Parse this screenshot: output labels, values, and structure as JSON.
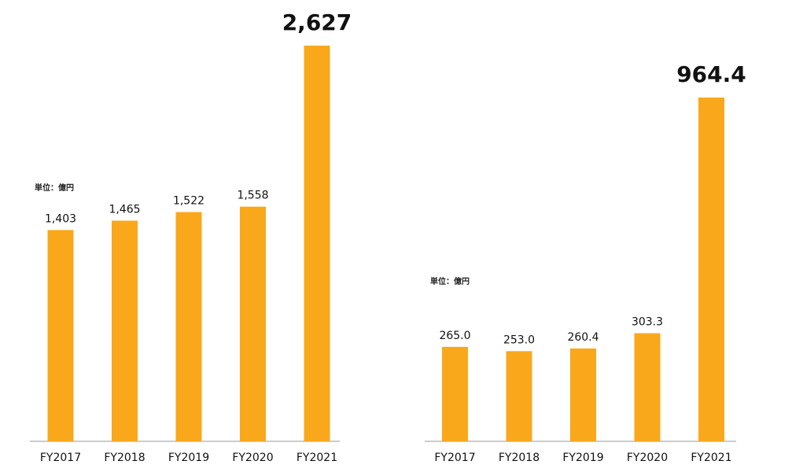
{
  "chart_data": [
    {
      "type": "bar",
      "unit_label": "単位：億円",
      "categories": [
        "FY2017",
        "FY2018",
        "FY2019",
        "FY2020",
        "FY2021"
      ],
      "values": [
        1403,
        1465,
        1522,
        1558,
        2627
      ],
      "value_labels": [
        "1,403",
        "1,465",
        "1,522",
        "1,558",
        "2,627"
      ],
      "highlight_last": true,
      "bar_color": "#F9A81B",
      "ylim": [
        0,
        2627
      ]
    },
    {
      "type": "bar",
      "unit_label": "単位：億円",
      "categories": [
        "FY2017",
        "FY2018",
        "FY2019",
        "FY2020",
        "FY2021"
      ],
      "values": [
        265.0,
        253.0,
        260.4,
        303.3,
        964.4
      ],
      "value_labels": [
        "265.0",
        "253.0",
        "260.4",
        "303.3",
        "964.4"
      ],
      "highlight_last": true,
      "bar_color": "#F9A81B",
      "ylim": [
        0,
        964.4
      ]
    }
  ]
}
